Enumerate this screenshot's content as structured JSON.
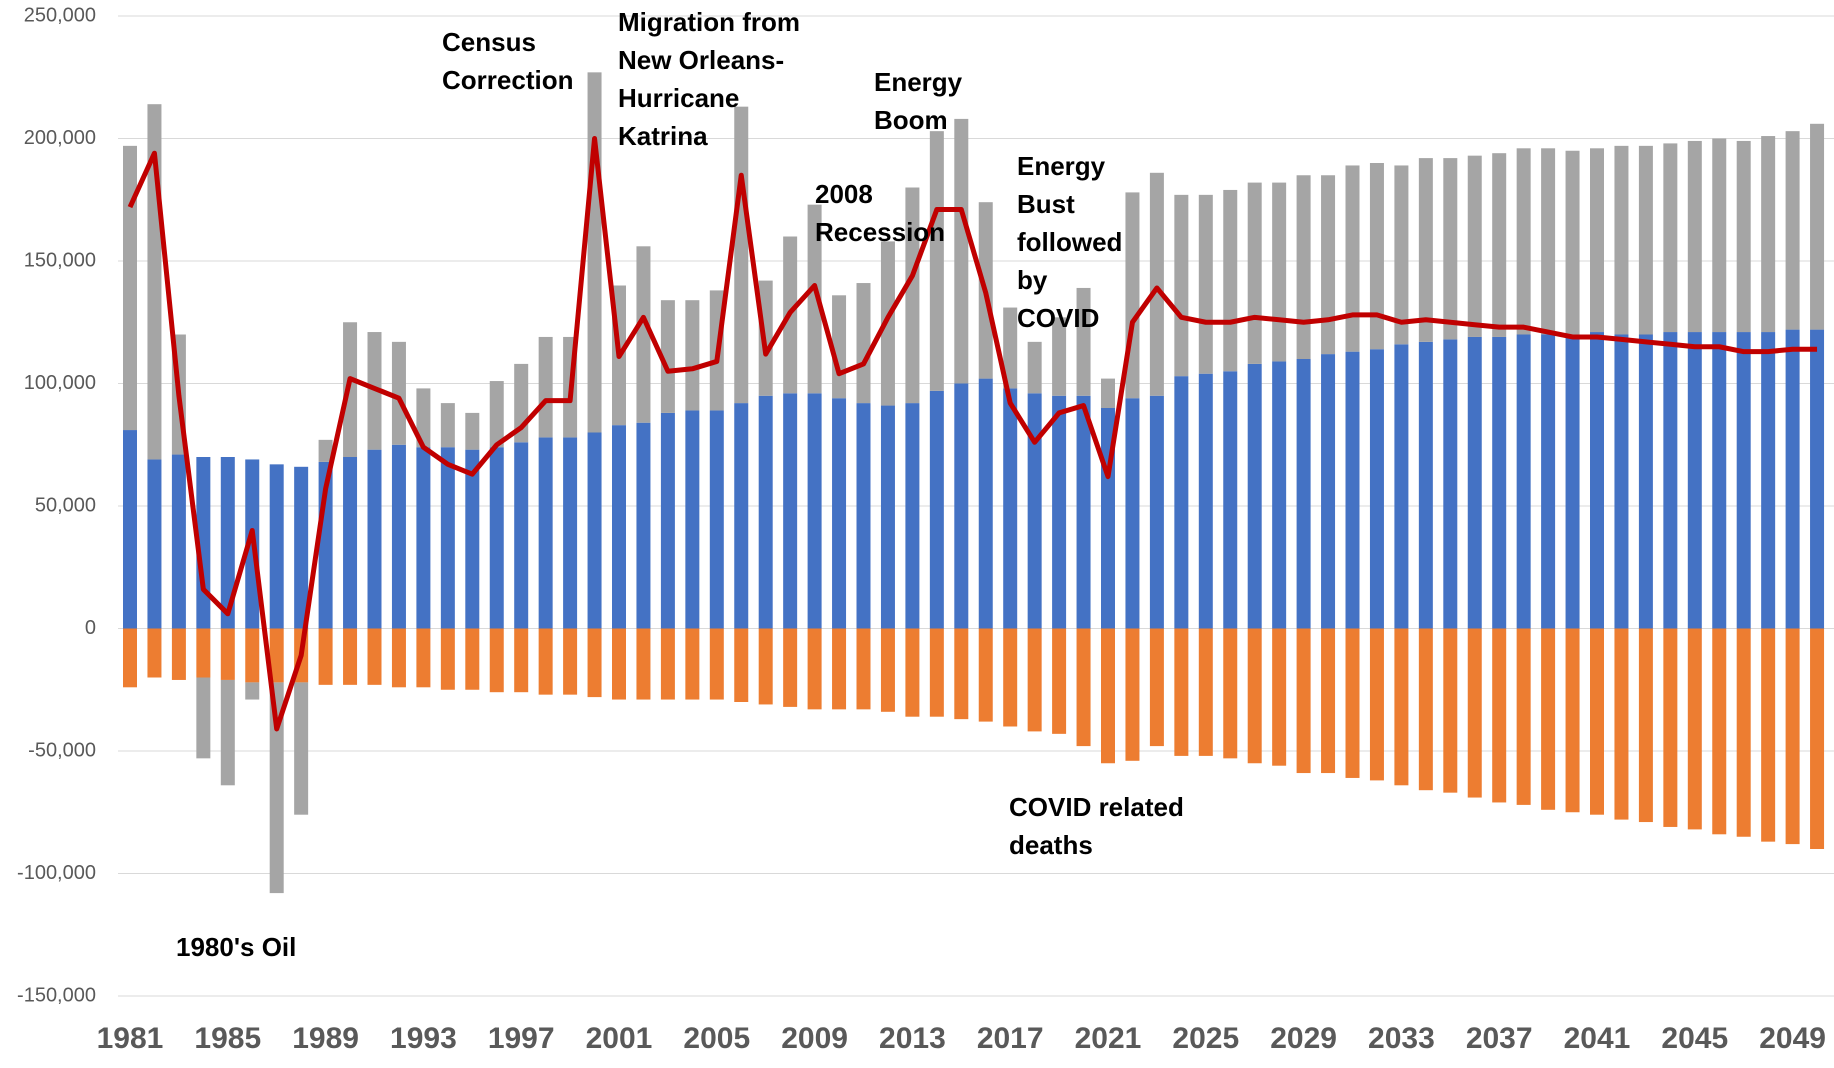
{
  "chart_data": {
    "type": "bar",
    "categories": [
      "1981",
      null,
      null,
      null,
      "1985",
      null,
      null,
      null,
      "1989",
      null,
      null,
      null,
      "1993",
      null,
      null,
      null,
      "1997",
      null,
      null,
      null,
      "2001",
      null,
      null,
      null,
      "2005",
      null,
      null,
      null,
      "2009",
      null,
      null,
      null,
      "2013",
      null,
      null,
      null,
      "2017",
      null,
      null,
      null,
      "2021",
      null,
      null,
      null,
      "2025",
      null,
      null,
      null,
      "2029",
      null,
      null,
      null,
      "2033",
      null,
      null,
      null,
      "2037",
      null,
      null,
      null,
      "2041",
      null,
      null,
      null,
      "2045",
      null,
      null,
      null,
      "2049",
      null
    ],
    "series": [
      {
        "type": "bar",
        "color": "#4472c4",
        "values": [
          81000,
          69000,
          71000,
          70000,
          70000,
          69000,
          67000,
          66000,
          68000,
          70000,
          73000,
          75000,
          74000,
          74000,
          73000,
          74000,
          76000,
          78000,
          78000,
          80000,
          83000,
          84000,
          88000,
          89000,
          89000,
          92000,
          95000,
          96000,
          96000,
          94000,
          92000,
          91000,
          92000,
          97000,
          100000,
          102000,
          98000,
          96000,
          95000,
          95000,
          90000,
          94000,
          95000,
          103000,
          104000,
          105000,
          108000,
          109000,
          110000,
          112000,
          113000,
          114000,
          116000,
          117000,
          118000,
          119000,
          119000,
          120000,
          120000,
          120000,
          121000,
          120000,
          120000,
          121000,
          121000,
          121000,
          121000,
          121000,
          122000,
          122000
        ]
      },
      {
        "type": "bar",
        "color": "#ed7d31",
        "values": [
          -24000,
          -20000,
          -21000,
          -20000,
          -21000,
          -22000,
          -22000,
          -22000,
          -23000,
          -23000,
          -23000,
          -24000,
          -24000,
          -25000,
          -25000,
          -26000,
          -26000,
          -27000,
          -27000,
          -28000,
          -29000,
          -29000,
          -29000,
          -29000,
          -29000,
          -30000,
          -31000,
          -32000,
          -33000,
          -33000,
          -33000,
          -34000,
          -36000,
          -36000,
          -37000,
          -38000,
          -40000,
          -42000,
          -43000,
          -48000,
          -55000,
          -54000,
          -48000,
          -52000,
          -52000,
          -53000,
          -55000,
          -56000,
          -59000,
          -59000,
          -61000,
          -62000,
          -64000,
          -66000,
          -67000,
          -69000,
          -71000,
          -72000,
          -74000,
          -75000,
          -76000,
          -78000,
          -79000,
          -81000,
          -82000,
          -84000,
          -85000,
          -87000,
          -88000,
          -90000
        ]
      },
      {
        "type": "bar",
        "color": "#a5a5a5",
        "values": [
          116000,
          145000,
          49000,
          -33000,
          -43000,
          -7000,
          -86000,
          -54000,
          9000,
          55000,
          48000,
          42000,
          24000,
          18000,
          15000,
          27000,
          32000,
          41000,
          41000,
          147000,
          57000,
          72000,
          46000,
          45000,
          49000,
          121000,
          47000,
          64000,
          77000,
          42000,
          49000,
          67000,
          88000,
          106000,
          108000,
          72000,
          33000,
          21000,
          32000,
          44000,
          12000,
          84000,
          91000,
          74000,
          73000,
          74000,
          74000,
          73000,
          75000,
          73000,
          76000,
          76000,
          73000,
          75000,
          74000,
          74000,
          75000,
          76000,
          76000,
          75000,
          75000,
          77000,
          77000,
          77000,
          78000,
          79000,
          78000,
          80000,
          81000,
          84000
        ]
      },
      {
        "type": "line",
        "color": "#c00000",
        "values": [
          172000,
          194000,
          95000,
          16000,
          6000,
          40000,
          -41000,
          -11000,
          57000,
          102000,
          98000,
          94000,
          74000,
          67000,
          63000,
          75000,
          82000,
          93000,
          93000,
          200000,
          111000,
          127000,
          105000,
          106000,
          109000,
          185000,
          112000,
          129000,
          140000,
          104000,
          108000,
          127000,
          144000,
          171000,
          171000,
          137000,
          92000,
          76000,
          88000,
          91000,
          62000,
          125000,
          139000,
          127000,
          125000,
          125000,
          127000,
          126000,
          125000,
          126000,
          128000,
          128000,
          125000,
          126000,
          125000,
          124000,
          123000,
          123000,
          121000,
          119000,
          119000,
          118000,
          117000,
          116000,
          115000,
          115000,
          113000,
          113000,
          114000,
          114000
        ]
      }
    ],
    "ylim": [
      -150000,
      250000
    ],
    "yticks": [
      {
        "value": -150000,
        "label": "-150,000"
      },
      {
        "value": -100000,
        "label": "-100,000"
      },
      {
        "value": -50000,
        "label": "-50,000"
      },
      0,
      {
        "value": 50000,
        "label": "50,000"
      },
      {
        "value": 100000,
        "label": "100,000"
      },
      {
        "value": 150000,
        "label": "150,000"
      },
      {
        "value": 200000,
        "label": "200,000"
      },
      {
        "value": 250000,
        "label": "250,000"
      }
    ],
    "grid": true,
    "annotations": [
      [
        "1980's Oil"
      ],
      [
        "Census",
        "Correction"
      ],
      [
        "Migration from",
        "New Orleans-",
        "Hurricane",
        "Katrina"
      ],
      [
        "Energy",
        "Boom"
      ],
      [
        "2008",
        "Recession"
      ],
      [
        "Energy",
        "Bust",
        "followed",
        "by",
        "COVID"
      ],
      [
        "COVID related",
        "deaths"
      ]
    ]
  }
}
